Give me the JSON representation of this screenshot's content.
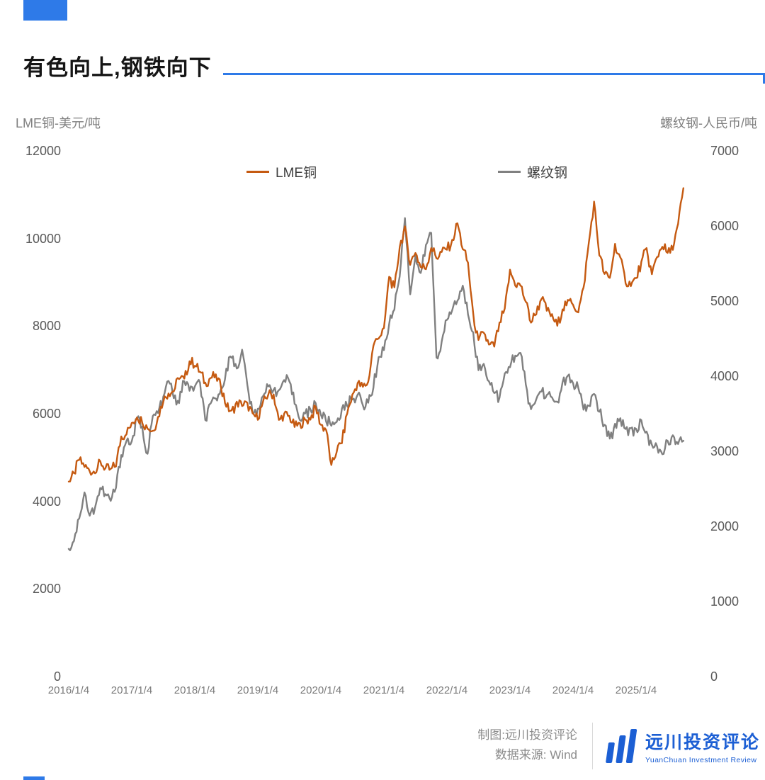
{
  "page": {
    "title": "有色向上,钢铁向下"
  },
  "colors": {
    "accent_blue": "#2e7ae8",
    "copper": "#c55a11",
    "rebar": "#808080",
    "logo_blue": "#1c5fd4"
  },
  "footer": {
    "credit": "制图:远川投资评论",
    "source": "数据来源: Wind",
    "logo_cn": "远川投资评论",
    "logo_en": "YuanChuan Investment Review"
  },
  "chart_data": {
    "type": "line",
    "title": "有色向上,钢铁向下",
    "grid": false,
    "legend_position": "top",
    "x_axis": {
      "labels": [
        "2016/1/4",
        "2017/1/4",
        "2018/1/4",
        "2019/1/4",
        "2020/1/4",
        "2021/1/4",
        "2022/1/4",
        "2023/1/4",
        "2024/1/4",
        "2025/1/4"
      ],
      "start": "2016-01",
      "interval_months_per_point": 1
    },
    "left_axis": {
      "title": "LME铜-美元/吨",
      "min": 0,
      "max": 12000,
      "ticks": [
        12000,
        10000,
        8000,
        6000,
        4000,
        2000,
        0
      ]
    },
    "right_axis": {
      "title": "螺纹钢-人民币/吨",
      "min": 0,
      "max": 7000,
      "ticks": [
        7000,
        6000,
        5000,
        4000,
        3000,
        2000,
        1000,
        0
      ]
    },
    "series": [
      {
        "name": "LME铜",
        "axis": "left",
        "color": "#c55a11",
        "unit": "美元/吨",
        "values": [
          4450,
          4620,
          4950,
          4800,
          4690,
          4680,
          4900,
          4750,
          4720,
          4820,
          5480,
          5560,
          5760,
          5940,
          5830,
          5680,
          5610,
          5920,
          6300,
          6480,
          6520,
          6820,
          6780,
          7200,
          7120,
          6950,
          6700,
          6820,
          6860,
          6620,
          6180,
          6050,
          6250,
          6200,
          6220,
          5980,
          5900,
          6250,
          6450,
          6440,
          5840,
          5980,
          5940,
          5710,
          5760,
          5850,
          5890,
          6150,
          5750,
          5640,
          4800,
          5150,
          5350,
          6010,
          6420,
          6700,
          6610,
          6720,
          7560,
          7750,
          7920,
          9140,
          8850,
          9820,
          10240,
          9420,
          9690,
          9350,
          9320,
          9800,
          9560,
          9690,
          9760,
          9940,
          10350,
          9770,
          9440,
          8250,
          7650,
          7860,
          7560,
          7540,
          8050,
          8370,
          9260,
          8950,
          8930,
          8560,
          8090,
          8300,
          8650,
          8360,
          8240,
          8010,
          8400,
          8560,
          8510,
          8340,
          8860,
          9900,
          10820,
          9640,
          9180,
          9090,
          9860,
          9540,
          9010,
          8950,
          9080,
          9440,
          9760,
          9180,
          9580,
          9840,
          9660,
          9780,
          10310,
          11150
        ]
      },
      {
        "name": "螺纹钢",
        "axis": "right",
        "color": "#808080",
        "unit": "人民币/吨",
        "values": [
          1700,
          1820,
          2120,
          2460,
          2130,
          2260,
          2510,
          2420,
          2340,
          2520,
          2950,
          3140,
          3120,
          3440,
          3310,
          2960,
          3460,
          3510,
          3700,
          3950,
          3710,
          3660,
          3950,
          3810,
          3860,
          3900,
          3410,
          3610,
          3700,
          3810,
          4100,
          4260,
          4110,
          4340,
          3890,
          3490,
          3550,
          3760,
          3850,
          3840,
          3790,
          3950,
          3910,
          3650,
          3440,
          3500,
          3540,
          3650,
          3490,
          3410,
          3350,
          3400,
          3550,
          3610,
          3710,
          3750,
          3610,
          3650,
          3860,
          4260,
          4360,
          4700,
          4910,
          5350,
          6120,
          5110,
          5590,
          5350,
          5740,
          5910,
          4260,
          4440,
          4750,
          4890,
          5010,
          5190,
          4840,
          4590,
          4090,
          4150,
          3950,
          3790,
          3700,
          4010,
          4140,
          4290,
          4300,
          3890,
          3540,
          3700,
          3810,
          3750,
          3700,
          3650,
          3900,
          3990,
          3900,
          3850,
          3540,
          3610,
          3760,
          3540,
          3340,
          3150,
          3350,
          3440,
          3300,
          3290,
          3290,
          3390,
          3240,
          3090,
          3040,
          2950,
          3140,
          3190,
          3090,
          3140
        ]
      }
    ]
  }
}
